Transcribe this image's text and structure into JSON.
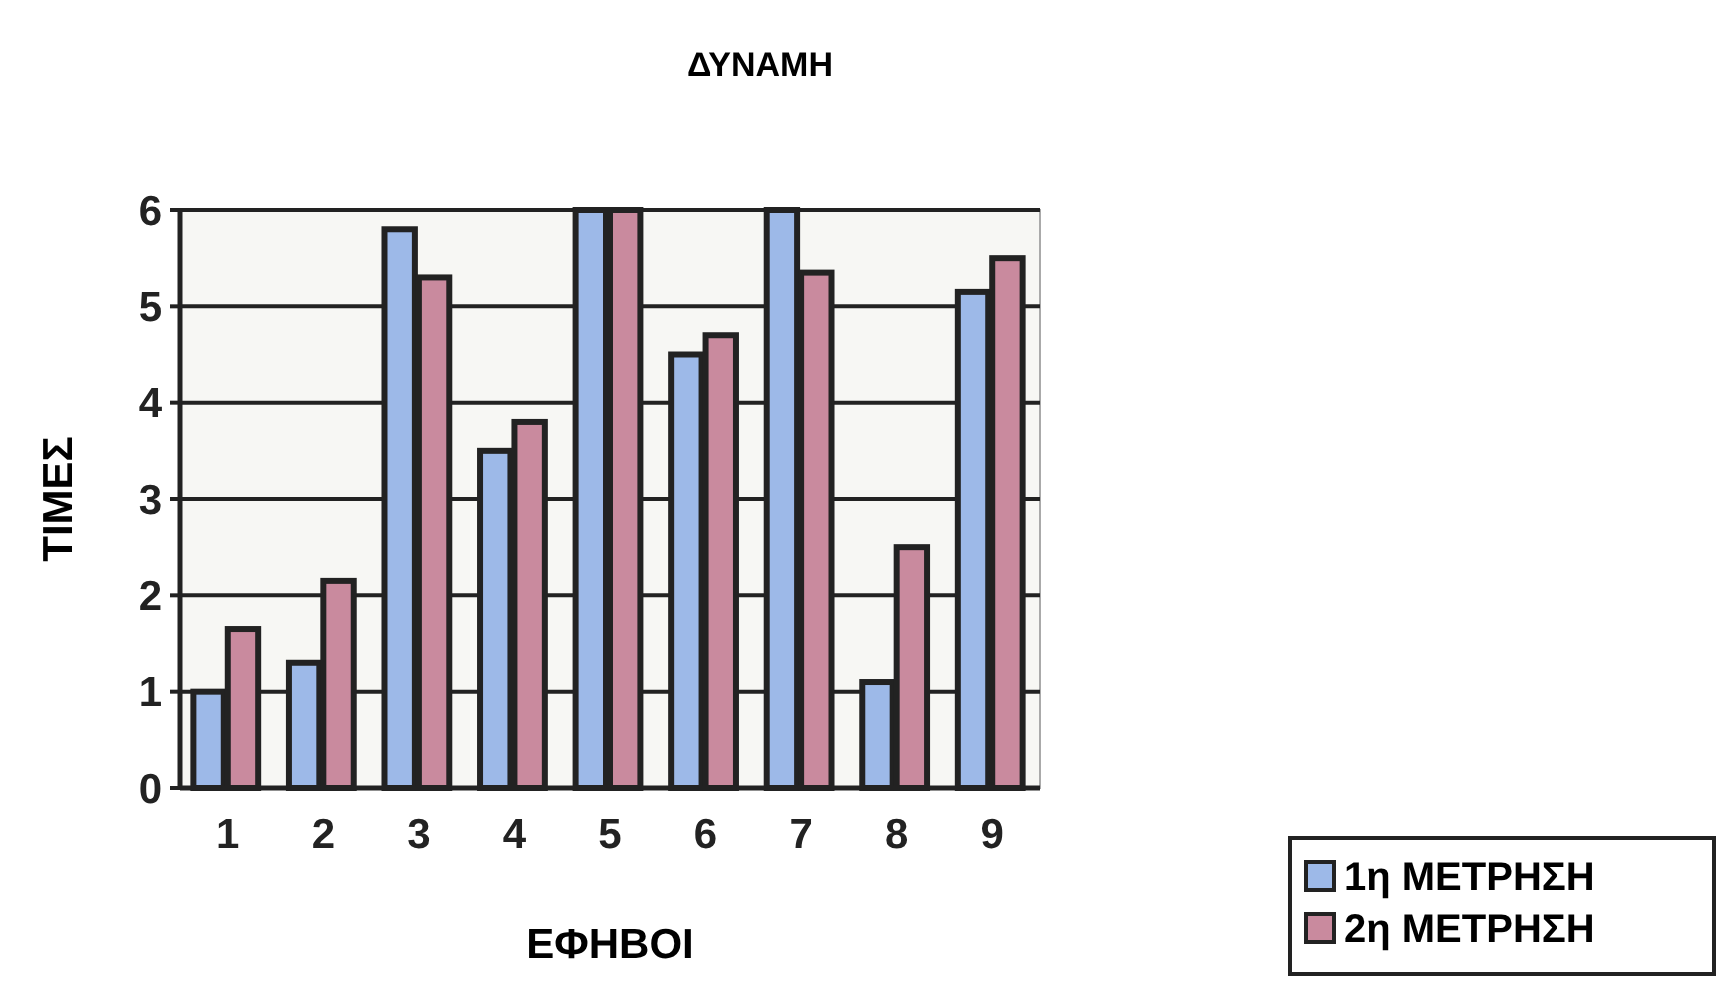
{
  "chart_data": {
    "type": "bar",
    "title": "ΔΥΝΑΜΗ",
    "xlabel": "ΕΦΗΒΟΙ",
    "ylabel": "ΤΙΜΕΣ",
    "categories": [
      "1",
      "2",
      "3",
      "4",
      "5",
      "6",
      "7",
      "8",
      "9"
    ],
    "series": [
      {
        "name": "1η ΜΕΤΡΗΣΗ",
        "color": "#9db9e8",
        "values": [
          1.0,
          1.3,
          5.8,
          3.5,
          6,
          4.5,
          6,
          1.1,
          5.15
        ]
      },
      {
        "name": "2η ΜΕΤΡΗΣΗ",
        "color": "#c98a9e",
        "values": [
          1.65,
          2.15,
          5.3,
          3.8,
          6,
          4.7,
          5.35,
          2.5,
          5.5
        ]
      }
    ],
    "ylim": [
      0,
      6
    ],
    "yticks": [
      0,
      1,
      2,
      3,
      4,
      5,
      6
    ],
    "grid": "y",
    "legend": "bottom right"
  }
}
